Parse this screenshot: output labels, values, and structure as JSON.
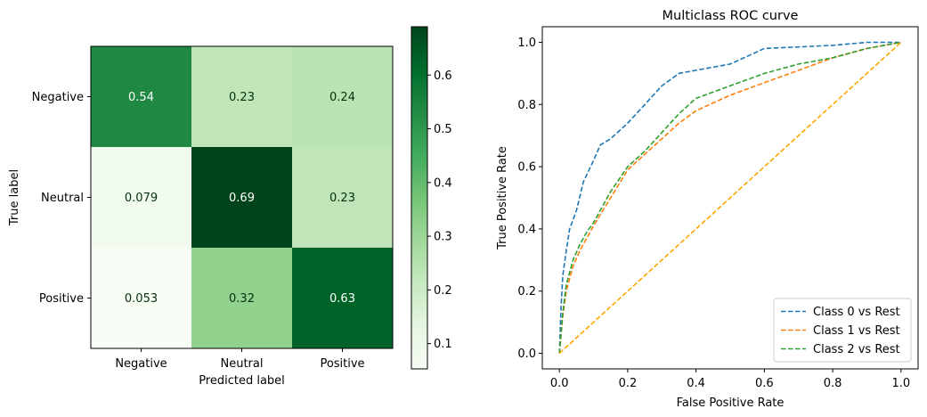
{
  "chart_data": [
    {
      "type": "heatmap",
      "title": "",
      "xlabel": "Predicted label",
      "ylabel": "True label",
      "x_categories": [
        "Negative",
        "Neutral",
        "Positive"
      ],
      "y_categories": [
        "Negative",
        "Neutral",
        "Positive"
      ],
      "values": [
        [
          0.54,
          0.23,
          0.24
        ],
        [
          0.079,
          0.69,
          0.23
        ],
        [
          0.053,
          0.32,
          0.63
        ]
      ],
      "cell_labels": [
        [
          "0.54",
          "0.23",
          "0.24"
        ],
        [
          "0.079",
          "0.69",
          "0.23"
        ],
        [
          "0.053",
          "0.32",
          "0.63"
        ]
      ],
      "colormap": "Greens",
      "colorbar": {
        "range": [
          0.053,
          0.69
        ],
        "ticks": [
          0.1,
          0.2,
          0.3,
          0.4,
          0.5,
          0.6
        ],
        "tick_labels": [
          "0.1",
          "0.2",
          "0.3",
          "0.4",
          "0.5",
          "0.6"
        ]
      }
    },
    {
      "type": "line",
      "title": "Multiclass ROC curve",
      "xlabel": "False Positive Rate",
      "ylabel": "True Positive Rate",
      "xlim": [
        -0.05,
        1.05
      ],
      "ylim": [
        -0.05,
        1.05
      ],
      "xticks": [
        0.0,
        0.2,
        0.4,
        0.6,
        0.8,
        1.0
      ],
      "xtick_labels": [
        "0.0",
        "0.2",
        "0.4",
        "0.6",
        "0.8",
        "1.0"
      ],
      "yticks": [
        0.0,
        0.2,
        0.4,
        0.6,
        0.8,
        1.0
      ],
      "ytick_labels": [
        "0.0",
        "0.2",
        "0.4",
        "0.6",
        "0.8",
        "1.0"
      ],
      "grid": false,
      "legend_position": "bottom-right",
      "series": [
        {
          "name": "Class 0 vs Rest",
          "color": "#1f77b4",
          "dash": "dashed",
          "x": [
            0,
            0.005,
            0.01,
            0.02,
            0.03,
            0.05,
            0.07,
            0.1,
            0.12,
            0.15,
            0.2,
            0.25,
            0.3,
            0.35,
            0.4,
            0.5,
            0.6,
            0.7,
            0.8,
            0.9,
            1.0
          ],
          "y": [
            0,
            0.15,
            0.25,
            0.33,
            0.4,
            0.46,
            0.55,
            0.62,
            0.67,
            0.69,
            0.74,
            0.8,
            0.86,
            0.9,
            0.91,
            0.93,
            0.98,
            0.985,
            0.99,
            1.0,
            1.0
          ]
        },
        {
          "name": "Class 1 vs Rest",
          "color": "#ff7f0e",
          "dash": "dashed",
          "x": [
            0,
            0.01,
            0.02,
            0.04,
            0.06,
            0.08,
            0.1,
            0.15,
            0.2,
            0.25,
            0.3,
            0.35,
            0.4,
            0.5,
            0.6,
            0.7,
            0.8,
            0.9,
            1.0
          ],
          "y": [
            0,
            0.12,
            0.2,
            0.28,
            0.33,
            0.37,
            0.41,
            0.5,
            0.59,
            0.64,
            0.69,
            0.74,
            0.78,
            0.83,
            0.87,
            0.91,
            0.95,
            0.98,
            1.0
          ]
        },
        {
          "name": "Class 2 vs Rest",
          "color": "#2ca02c",
          "dash": "dashed",
          "x": [
            0,
            0.01,
            0.02,
            0.04,
            0.06,
            0.08,
            0.1,
            0.15,
            0.2,
            0.25,
            0.3,
            0.35,
            0.4,
            0.5,
            0.6,
            0.7,
            0.8,
            0.9,
            1.0
          ],
          "y": [
            0,
            0.13,
            0.22,
            0.3,
            0.35,
            0.39,
            0.42,
            0.52,
            0.6,
            0.65,
            0.71,
            0.77,
            0.82,
            0.86,
            0.9,
            0.93,
            0.95,
            0.98,
            1.0
          ]
        },
        {
          "name": "",
          "color": "#ffa500",
          "dash": "dashed",
          "x": [
            0,
            1
          ],
          "y": [
            0,
            1
          ]
        }
      ]
    }
  ]
}
